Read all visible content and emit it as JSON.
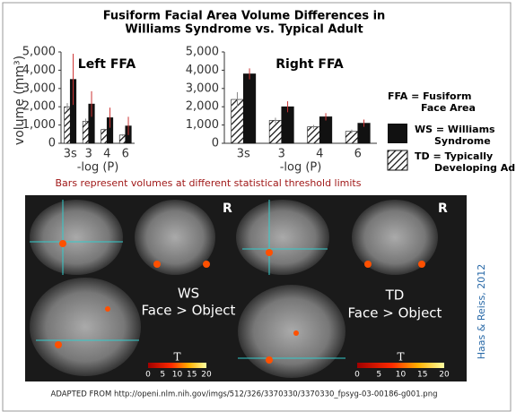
{
  "title": [
    "Fusiform Facial Area Volume Differences in",
    "Williams Syndrome vs. Typical Adult"
  ],
  "chart_data": [
    {
      "type": "bar",
      "title": "Left FFA",
      "ylabel": "volume (mm³)",
      "xlabel": "-log (P)",
      "categories": [
        "3s",
        "3",
        "4",
        "6"
      ],
      "series": [
        {
          "name": "TD = Typically Developing Adult",
          "color": "hatch",
          "values": [
            2000,
            1200,
            750,
            450
          ],
          "errors": [
            200,
            150,
            50,
            50
          ]
        },
        {
          "name": "WS = Williams Syndrome",
          "color": "#111111",
          "values": [
            3500,
            2150,
            1400,
            950
          ],
          "errors": [
            1400,
            700,
            550,
            500
          ]
        }
      ],
      "ylim": [
        0,
        5000
      ],
      "yticks": [
        0,
        {
          "value": 1000,
          "label": "1,000"
        },
        {
          "value": 2000,
          "label": "2,000"
        },
        {
          "value": 3000,
          "label": "3,000"
        },
        {
          "value": 4000,
          "label": "4,000"
        },
        {
          "value": 5000,
          "label": "5,000"
        }
      ]
    },
    {
      "type": "bar",
      "title": "Right FFA",
      "xlabel": "-log (P)",
      "categories": [
        "3s",
        "3",
        "4",
        "6"
      ],
      "series": [
        {
          "name": "TD = Typically Developing Adult",
          "color": "hatch",
          "values": [
            2400,
            1250,
            900,
            650
          ],
          "errors": [
            400,
            150,
            100,
            100
          ]
        },
        {
          "name": "WS = Williams Syndrome",
          "color": "#111111",
          "values": [
            3800,
            2000,
            1450,
            1100
          ],
          "errors": [
            300,
            300,
            200,
            200
          ]
        }
      ],
      "ylim": [
        0,
        5000
      ],
      "yticks": [
        0,
        {
          "value": 1000,
          "label": "1,000"
        },
        {
          "value": 2000,
          "label": "2,000"
        },
        {
          "value": 3000,
          "label": "3,000"
        },
        {
          "value": 4000,
          "label": "4,000"
        },
        {
          "value": 5000,
          "label": "5,000"
        }
      ]
    }
  ],
  "legend_note": "FFA = Fusiform Face Area",
  "note": "Bars represent volumes at different statistical threshold limits",
  "panels": {
    "ws": {
      "group": "WS",
      "contrast": "Face > Object"
    },
    "td": {
      "group": "TD",
      "contrast": "Face > Object"
    }
  },
  "orientation_label": "R",
  "colorbar": {
    "label": "T",
    "ticks": [
      0,
      5,
      10,
      15,
      20
    ]
  },
  "credit": "Haas & Reiss, 2012",
  "source": "ADAPTED FROM http://openi.nlm.nih.gov/imgs/512/326/3370330/3370330_fpsyg-03-00186-g001.png"
}
